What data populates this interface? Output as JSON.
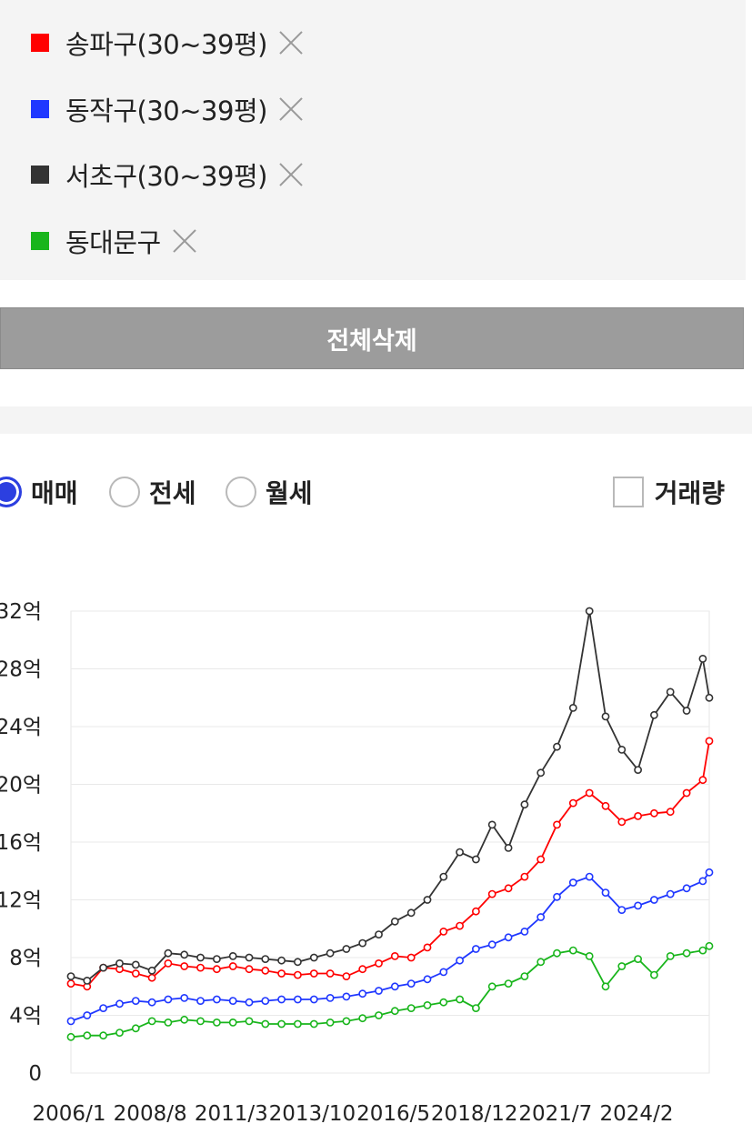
{
  "legend": [
    {
      "label": "송파구(30~39평)",
      "color": "#ff0000",
      "icon": "square-icon",
      "remove_icon": "close-icon"
    },
    {
      "label": "동작구(30~39평)",
      "color": "#1f37ff",
      "icon": "square-icon",
      "remove_icon": "close-icon"
    },
    {
      "label": "서초구(30~39평)",
      "color": "#333333",
      "icon": "square-icon",
      "remove_icon": "close-icon"
    },
    {
      "label": "동대문구",
      "color": "#19b51c",
      "icon": "square-icon",
      "remove_icon": "close-icon"
    }
  ],
  "delete_all_label": "전체삭제",
  "trade_types": [
    {
      "label": "매매",
      "selected": true
    },
    {
      "label": "전세",
      "selected": false
    },
    {
      "label": "월세",
      "selected": false
    }
  ],
  "volume_toggle": {
    "label": "거래량",
    "checked": false
  },
  "chart_data": {
    "type": "line",
    "x_ticks": [
      "2006/1",
      "2008/8",
      "2011/3",
      "2013/10",
      "2016/5",
      "2018/12",
      "2021/7",
      "2024/2"
    ],
    "y_ticks": [
      "0",
      "4억",
      "8억",
      "12억",
      "16억",
      "20억",
      "24억",
      "28억",
      "32억"
    ],
    "ylim": [
      0,
      32
    ],
    "y_unit": "억",
    "x_range": [
      2006.0,
      2025.7
    ],
    "grid": true,
    "series": [
      {
        "name": "송파구(30~39평)",
        "color": "#ff0000",
        "x": [
          2006.0,
          2006.5,
          2007.0,
          2007.5,
          2008.0,
          2008.5,
          2009.0,
          2009.5,
          2010.0,
          2010.5,
          2011.0,
          2011.5,
          2012.0,
          2012.5,
          2013.0,
          2013.5,
          2014.0,
          2014.5,
          2015.0,
          2015.5,
          2016.0,
          2016.5,
          2017.0,
          2017.5,
          2018.0,
          2018.5,
          2019.0,
          2019.5,
          2020.0,
          2020.5,
          2021.0,
          2021.5,
          2022.0,
          2022.5,
          2023.0,
          2023.5,
          2024.0,
          2024.5,
          2025.0,
          2025.5,
          2025.7
        ],
        "y": [
          6.2,
          6.0,
          7.3,
          7.2,
          6.9,
          6.6,
          7.6,
          7.4,
          7.3,
          7.2,
          7.4,
          7.2,
          7.1,
          6.9,
          6.8,
          6.9,
          6.9,
          6.7,
          7.2,
          7.6,
          8.1,
          8.0,
          8.7,
          9.8,
          10.2,
          11.2,
          12.4,
          12.8,
          13.6,
          14.8,
          17.2,
          18.7,
          19.4,
          18.5,
          17.4,
          17.8,
          18.0,
          18.1,
          19.4,
          20.3,
          23.0
        ]
      },
      {
        "name": "동작구(30~39평)",
        "color": "#1f37ff",
        "x": [
          2006.0,
          2006.5,
          2007.0,
          2007.5,
          2008.0,
          2008.5,
          2009.0,
          2009.5,
          2010.0,
          2010.5,
          2011.0,
          2011.5,
          2012.0,
          2012.5,
          2013.0,
          2013.5,
          2014.0,
          2014.5,
          2015.0,
          2015.5,
          2016.0,
          2016.5,
          2017.0,
          2017.5,
          2018.0,
          2018.5,
          2019.0,
          2019.5,
          2020.0,
          2020.5,
          2021.0,
          2021.5,
          2022.0,
          2022.5,
          2023.0,
          2023.5,
          2024.0,
          2024.5,
          2025.0,
          2025.5,
          2025.7
        ],
        "y": [
          3.6,
          4.0,
          4.5,
          4.8,
          5.0,
          4.9,
          5.1,
          5.2,
          5.0,
          5.1,
          5.0,
          4.9,
          5.0,
          5.1,
          5.1,
          5.1,
          5.2,
          5.3,
          5.5,
          5.7,
          6.0,
          6.2,
          6.5,
          7.0,
          7.8,
          8.6,
          8.9,
          9.4,
          9.8,
          10.8,
          12.2,
          13.2,
          13.6,
          12.5,
          11.3,
          11.6,
          12.0,
          12.4,
          12.8,
          13.3,
          13.9
        ]
      },
      {
        "name": "서초구(30~39평)",
        "color": "#333333",
        "x": [
          2006.0,
          2006.5,
          2007.0,
          2007.5,
          2008.0,
          2008.5,
          2009.0,
          2009.5,
          2010.0,
          2010.5,
          2011.0,
          2011.5,
          2012.0,
          2012.5,
          2013.0,
          2013.5,
          2014.0,
          2014.5,
          2015.0,
          2015.5,
          2016.0,
          2016.5,
          2017.0,
          2017.5,
          2018.0,
          2018.5,
          2019.0,
          2019.5,
          2020.0,
          2020.5,
          2021.0,
          2021.5,
          2022.0,
          2022.5,
          2023.0,
          2023.5,
          2024.0,
          2024.5,
          2025.0,
          2025.5,
          2025.7
        ],
        "y": [
          6.7,
          6.4,
          7.3,
          7.6,
          7.5,
          7.1,
          8.3,
          8.2,
          8.0,
          7.9,
          8.1,
          8.0,
          7.9,
          7.8,
          7.7,
          8.0,
          8.3,
          8.6,
          9.0,
          9.6,
          10.5,
          11.1,
          12.0,
          13.6,
          15.3,
          14.8,
          17.2,
          15.6,
          18.6,
          20.8,
          22.6,
          25.3,
          32.0,
          24.7,
          22.4,
          21.0,
          24.8,
          26.4,
          25.1,
          28.7,
          26.0
        ]
      },
      {
        "name": "동대문구",
        "color": "#19b51c",
        "x": [
          2006.0,
          2006.5,
          2007.0,
          2007.5,
          2008.0,
          2008.5,
          2009.0,
          2009.5,
          2010.0,
          2010.5,
          2011.0,
          2011.5,
          2012.0,
          2012.5,
          2013.0,
          2013.5,
          2014.0,
          2014.5,
          2015.0,
          2015.5,
          2016.0,
          2016.5,
          2017.0,
          2017.5,
          2018.0,
          2018.5,
          2019.0,
          2019.5,
          2020.0,
          2020.5,
          2021.0,
          2021.5,
          2022.0,
          2022.5,
          2023.0,
          2023.5,
          2024.0,
          2024.5,
          2025.0,
          2025.5,
          2025.7
        ],
        "y": [
          2.5,
          2.6,
          2.6,
          2.8,
          3.1,
          3.6,
          3.5,
          3.7,
          3.6,
          3.5,
          3.5,
          3.6,
          3.4,
          3.4,
          3.4,
          3.4,
          3.5,
          3.6,
          3.8,
          4.0,
          4.3,
          4.5,
          4.7,
          4.9,
          5.1,
          4.5,
          6.0,
          6.2,
          6.7,
          7.7,
          8.3,
          8.5,
          8.1,
          6.0,
          7.4,
          7.9,
          6.8,
          8.1,
          8.3,
          8.5,
          8.8
        ]
      }
    ]
  }
}
